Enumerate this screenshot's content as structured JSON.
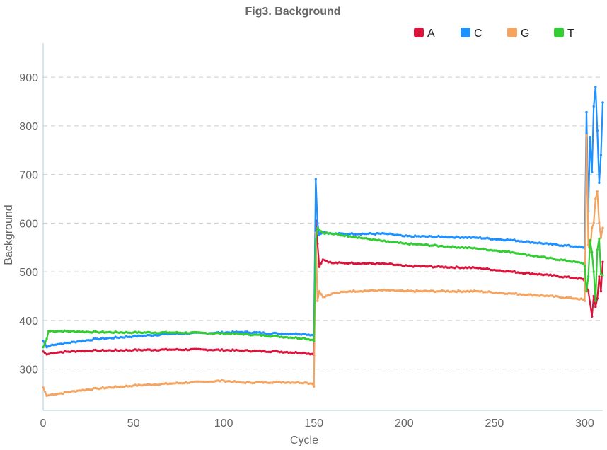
{
  "chart_data": {
    "type": "line",
    "title": "Fig3. Background",
    "xlabel": "Cycle",
    "ylabel": "Background",
    "xlim": [
      0,
      310
    ],
    "ylim": [
      215,
      970
    ],
    "x_ticks": [
      0,
      50,
      100,
      150,
      200,
      250,
      300
    ],
    "y_ticks": [
      300,
      400,
      500,
      600,
      700,
      800,
      900
    ],
    "grid": true,
    "legend_position": "top-right",
    "series": [
      {
        "name": "A",
        "color": "#dc143c",
        "points": [
          [
            0,
            336
          ],
          [
            2,
            330
          ],
          [
            5,
            333
          ],
          [
            10,
            335
          ],
          [
            20,
            337
          ],
          [
            30,
            338
          ],
          [
            50,
            339
          ],
          [
            70,
            340
          ],
          [
            90,
            340
          ],
          [
            110,
            338
          ],
          [
            130,
            336
          ],
          [
            145,
            333
          ],
          [
            149,
            331
          ],
          [
            150,
            328
          ],
          [
            151,
            605
          ],
          [
            153,
            510
          ],
          [
            155,
            525
          ],
          [
            160,
            518
          ],
          [
            170,
            518
          ],
          [
            190,
            516
          ],
          [
            200,
            512
          ],
          [
            220,
            510
          ],
          [
            240,
            508
          ],
          [
            260,
            500
          ],
          [
            280,
            493
          ],
          [
            295,
            487
          ],
          [
            299,
            485
          ],
          [
            300,
            480
          ],
          [
            301,
            470
          ],
          [
            302,
            460
          ],
          [
            303,
            435
          ],
          [
            304,
            408
          ],
          [
            305,
            450
          ],
          [
            306,
            428
          ],
          [
            307,
            445
          ],
          [
            308,
            490
          ],
          [
            309,
            460
          ],
          [
            310,
            520
          ]
        ]
      },
      {
        "name": "C",
        "color": "#1e90ff",
        "points": [
          [
            0,
            358
          ],
          [
            2,
            345
          ],
          [
            5,
            350
          ],
          [
            10,
            352
          ],
          [
            20,
            357
          ],
          [
            30,
            362
          ],
          [
            50,
            367
          ],
          [
            70,
            372
          ],
          [
            90,
            374
          ],
          [
            110,
            376
          ],
          [
            130,
            373
          ],
          [
            145,
            372
          ],
          [
            149,
            370
          ],
          [
            150,
            368
          ],
          [
            151,
            690
          ],
          [
            152,
            600
          ],
          [
            153,
            575
          ],
          [
            155,
            582
          ],
          [
            160,
            578
          ],
          [
            170,
            578
          ],
          [
            190,
            578
          ],
          [
            200,
            573
          ],
          [
            220,
            572
          ],
          [
            240,
            570
          ],
          [
            260,
            565
          ],
          [
            280,
            557
          ],
          [
            295,
            552
          ],
          [
            299,
            550
          ],
          [
            300,
            548
          ],
          [
            301,
            828
          ],
          [
            302,
            625
          ],
          [
            303,
            777
          ],
          [
            304,
            705
          ],
          [
            305,
            840
          ],
          [
            306,
            880
          ],
          [
            307,
            790
          ],
          [
            308,
            683
          ],
          [
            309,
            740
          ],
          [
            310,
            848
          ]
        ]
      },
      {
        "name": "G",
        "color": "#f4a460",
        "points": [
          [
            0,
            262
          ],
          [
            2,
            245
          ],
          [
            5,
            248
          ],
          [
            10,
            250
          ],
          [
            20,
            256
          ],
          [
            30,
            260
          ],
          [
            50,
            266
          ],
          [
            70,
            270
          ],
          [
            90,
            274
          ],
          [
            100,
            276
          ],
          [
            110,
            272
          ],
          [
            130,
            273
          ],
          [
            145,
            272
          ],
          [
            149,
            270
          ],
          [
            150,
            264
          ],
          [
            151,
            580
          ],
          [
            152,
            440
          ],
          [
            153,
            460
          ],
          [
            155,
            448
          ],
          [
            160,
            455
          ],
          [
            170,
            460
          ],
          [
            190,
            462
          ],
          [
            200,
            460
          ],
          [
            220,
            460
          ],
          [
            240,
            460
          ],
          [
            260,
            455
          ],
          [
            280,
            450
          ],
          [
            295,
            445
          ],
          [
            299,
            443
          ],
          [
            300,
            440
          ],
          [
            301,
            780
          ],
          [
            302,
            555
          ],
          [
            303,
            540
          ],
          [
            304,
            590
          ],
          [
            305,
            600
          ],
          [
            306,
            650
          ],
          [
            307,
            665
          ],
          [
            308,
            600
          ],
          [
            309,
            570
          ],
          [
            310,
            590
          ]
        ]
      },
      {
        "name": "T",
        "color": "#32cd32",
        "points": [
          [
            0,
            345
          ],
          [
            2,
            362
          ],
          [
            3,
            378
          ],
          [
            10,
            378
          ],
          [
            20,
            377
          ],
          [
            30,
            376
          ],
          [
            50,
            375
          ],
          [
            70,
            375
          ],
          [
            90,
            374
          ],
          [
            110,
            372
          ],
          [
            130,
            367
          ],
          [
            145,
            363
          ],
          [
            149,
            360
          ],
          [
            150,
            357
          ],
          [
            151,
            565
          ],
          [
            152,
            590
          ],
          [
            155,
            580
          ],
          [
            160,
            578
          ],
          [
            170,
            573
          ],
          [
            190,
            562
          ],
          [
            200,
            558
          ],
          [
            220,
            553
          ],
          [
            240,
            548
          ],
          [
            260,
            540
          ],
          [
            280,
            528
          ],
          [
            295,
            520
          ],
          [
            299,
            517
          ],
          [
            300,
            512
          ],
          [
            301,
            460
          ],
          [
            302,
            490
          ],
          [
            303,
            565
          ],
          [
            304,
            540
          ],
          [
            305,
            500
          ],
          [
            306,
            440
          ],
          [
            307,
            545
          ],
          [
            308,
            568
          ],
          [
            309,
            495
          ],
          [
            310,
            493
          ]
        ]
      }
    ]
  }
}
